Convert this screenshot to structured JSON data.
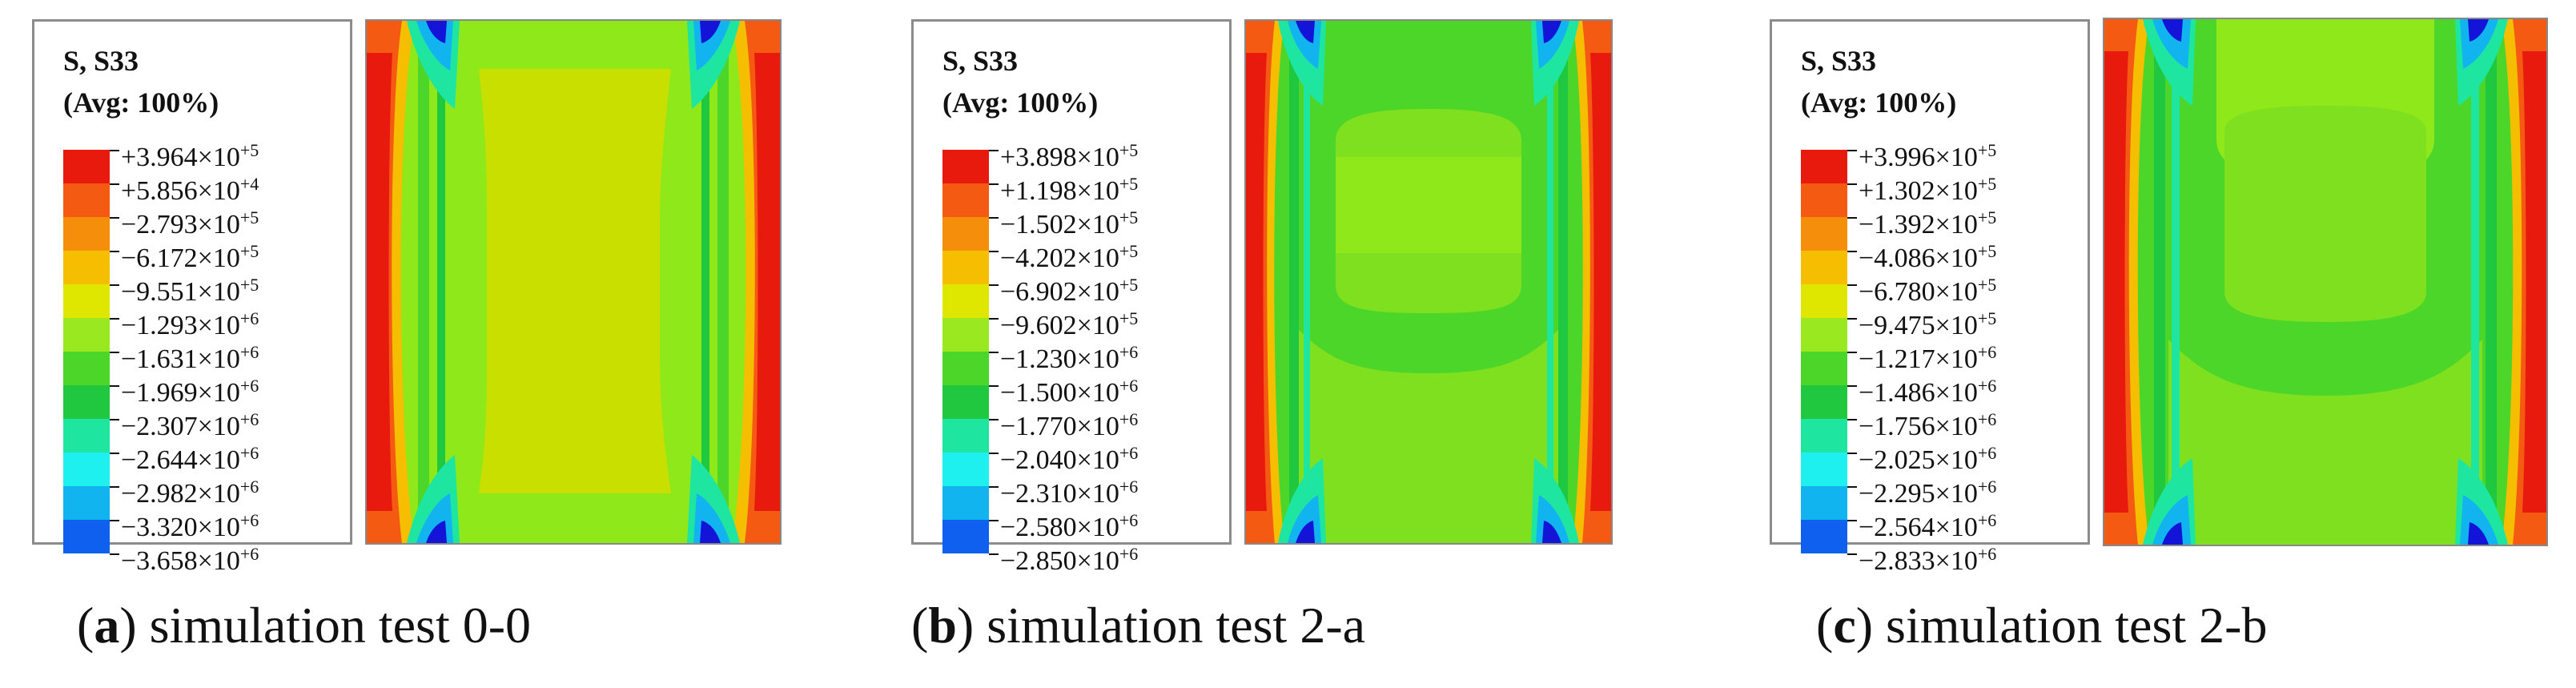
{
  "colors": [
    "#e8190d",
    "#f55a12",
    "#f58e0a",
    "#f5bf00",
    "#dfe600",
    "#9ae81f",
    "#4cd62a",
    "#20c840",
    "#1ee6a0",
    "#1ef0f0",
    "#12b4f0",
    "#1060f0",
    "#1414d8"
  ],
  "panels": [
    {
      "legend": {
        "title": "S, S33",
        "subtitle": "(Avg: 100%)",
        "values": [
          {
            "m": "+3.964×10",
            "e": "+5"
          },
          {
            "m": "+5.856×10",
            "e": "+4"
          },
          {
            "m": "−2.793×10",
            "e": "+5"
          },
          {
            "m": "−6.172×10",
            "e": "+5"
          },
          {
            "m": "−9.551×10",
            "e": "+5"
          },
          {
            "m": "−1.293×10",
            "e": "+6"
          },
          {
            "m": "−1.631×10",
            "e": "+6"
          },
          {
            "m": "−1.969×10",
            "e": "+6"
          },
          {
            "m": "−2.307×10",
            "e": "+6"
          },
          {
            "m": "−2.644×10",
            "e": "+6"
          },
          {
            "m": "−2.982×10",
            "e": "+6"
          },
          {
            "m": "−3.320×10",
            "e": "+6"
          },
          {
            "m": "−3.658×10",
            "e": "+6"
          }
        ]
      },
      "caption": {
        "letter": "a",
        "text": "simulation test 0-0"
      }
    },
    {
      "legend": {
        "title": "S, S33",
        "subtitle": "(Avg: 100%)",
        "values": [
          {
            "m": "+3.898×10",
            "e": "+5"
          },
          {
            "m": "+1.198×10",
            "e": "+5"
          },
          {
            "m": "−1.502×10",
            "e": "+5"
          },
          {
            "m": "−4.202×10",
            "e": "+5"
          },
          {
            "m": "−6.902×10",
            "e": "+5"
          },
          {
            "m": "−9.602×10",
            "e": "+5"
          },
          {
            "m": "−1.230×10",
            "e": "+6"
          },
          {
            "m": "−1.500×10",
            "e": "+6"
          },
          {
            "m": "−1.770×10",
            "e": "+6"
          },
          {
            "m": "−2.040×10",
            "e": "+6"
          },
          {
            "m": "−2.310×10",
            "e": "+6"
          },
          {
            "m": "−2.580×10",
            "e": "+6"
          },
          {
            "m": "−2.850×10",
            "e": "+6"
          }
        ]
      },
      "caption": {
        "letter": "b",
        "text": "simulation test 2-a"
      }
    },
    {
      "legend": {
        "title": "S, S33",
        "subtitle": "(Avg: 100%)",
        "values": [
          {
            "m": "+3.996×10",
            "e": "+5"
          },
          {
            "m": "+1.302×10",
            "e": "+5"
          },
          {
            "m": "−1.392×10",
            "e": "+5"
          },
          {
            "m": "−4.086×10",
            "e": "+5"
          },
          {
            "m": "−6.780×10",
            "e": "+5"
          },
          {
            "m": "−9.475×10",
            "e": "+5"
          },
          {
            "m": "−1.217×10",
            "e": "+6"
          },
          {
            "m": "−1.486×10",
            "e": "+6"
          },
          {
            "m": "−1.756×10",
            "e": "+6"
          },
          {
            "m": "−2.025×10",
            "e": "+6"
          },
          {
            "m": "−2.295×10",
            "e": "+6"
          },
          {
            "m": "−2.564×10",
            "e": "+6"
          },
          {
            "m": "−2.833×10",
            "e": "+6"
          }
        ]
      },
      "caption": {
        "letter": "c",
        "text": "simulation test 2-b"
      }
    }
  ]
}
